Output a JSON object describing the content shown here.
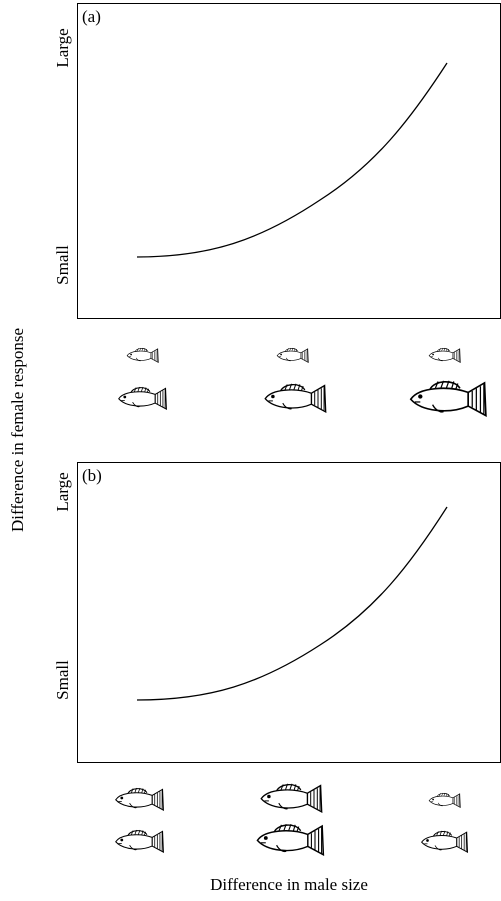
{
  "panels": [
    {
      "label": "(a)",
      "y_high": "Large",
      "y_low": "Small"
    },
    {
      "label": "(b)",
      "y_high": "Large",
      "y_low": "Small"
    }
  ],
  "y_axis_label": "Difference in female response",
  "x_axis_label": "Difference in male size"
}
